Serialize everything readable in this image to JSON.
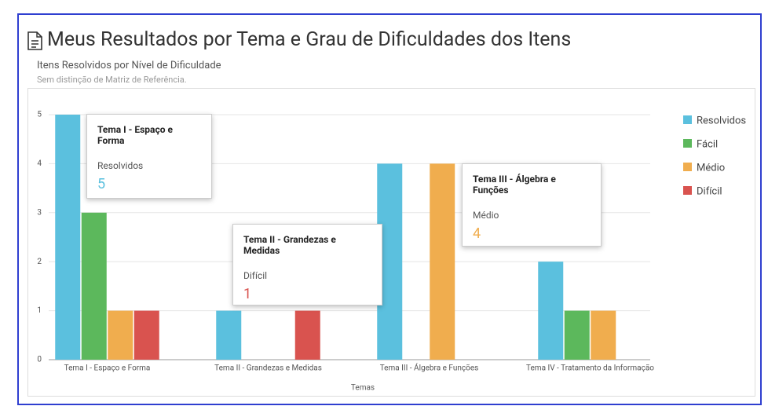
{
  "chart_data": {
    "type": "bar",
    "title": "Meus Resultados por Tema e Grau de Dificuldades dos Itens",
    "subtitle": "Itens Resolvidos por Nível de Dificuldade",
    "note": "Sem distinção de Matriz de Referência.",
    "x_label": "Temas",
    "categories": [
      "Tema I - Espaço e Forma",
      "Tema II - Grandezas e Medidas",
      "Tema III - Álgebra e Funções",
      "Tema IV - Tratamento da Informação"
    ],
    "series": [
      {
        "name": "Resolvidos",
        "color": "#5bc0de",
        "values": [
          5,
          1,
          4,
          2
        ]
      },
      {
        "name": "Fácil",
        "color": "#5cb85c",
        "values": [
          3,
          0,
          0,
          1
        ]
      },
      {
        "name": "Médio",
        "color": "#f0ad4e",
        "values": [
          1,
          0,
          4,
          1
        ]
      },
      {
        "name": "Difícil",
        "color": "#d9534f",
        "values": [
          1,
          1,
          0,
          0
        ]
      }
    ],
    "ylim": [
      0,
      5
    ],
    "yticks": [
      0,
      1,
      2,
      3,
      4,
      5
    ],
    "grid": true,
    "legend": "right"
  }
}
